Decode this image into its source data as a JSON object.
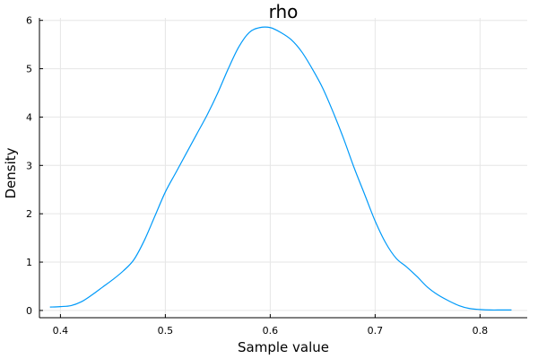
{
  "chart_data": {
    "type": "line",
    "title": "rho",
    "xlabel": "Sample value",
    "ylabel": "Density",
    "xlim": [
      0.38,
      0.845
    ],
    "ylim": [
      -0.15,
      6.05
    ],
    "xticks": [
      0.4,
      0.5,
      0.6,
      0.7,
      0.8
    ],
    "yticks": [
      0,
      1,
      2,
      3,
      4,
      5,
      6
    ],
    "grid": true,
    "legend": "none",
    "series": [
      {
        "color": "#009af9",
        "x": [
          0.39,
          0.4,
          0.41,
          0.42,
          0.43,
          0.44,
          0.45,
          0.46,
          0.47,
          0.48,
          0.49,
          0.5,
          0.51,
          0.52,
          0.53,
          0.54,
          0.55,
          0.56,
          0.57,
          0.58,
          0.59,
          0.6,
          0.61,
          0.62,
          0.63,
          0.64,
          0.65,
          0.66,
          0.67,
          0.68,
          0.69,
          0.7,
          0.71,
          0.72,
          0.73,
          0.74,
          0.75,
          0.76,
          0.77,
          0.78,
          0.79,
          0.8,
          0.81,
          0.82,
          0.83
        ],
        "y": [
          0.07,
          0.08,
          0.1,
          0.18,
          0.32,
          0.48,
          0.64,
          0.82,
          1.05,
          1.45,
          1.95,
          2.45,
          2.85,
          3.25,
          3.65,
          4.05,
          4.5,
          5.0,
          5.45,
          5.75,
          5.85,
          5.85,
          5.75,
          5.6,
          5.35,
          5.0,
          4.6,
          4.1,
          3.55,
          2.95,
          2.4,
          1.85,
          1.4,
          1.08,
          0.9,
          0.7,
          0.48,
          0.32,
          0.2,
          0.1,
          0.04,
          0.02,
          0.01,
          0.01,
          0.01
        ]
      }
    ]
  }
}
